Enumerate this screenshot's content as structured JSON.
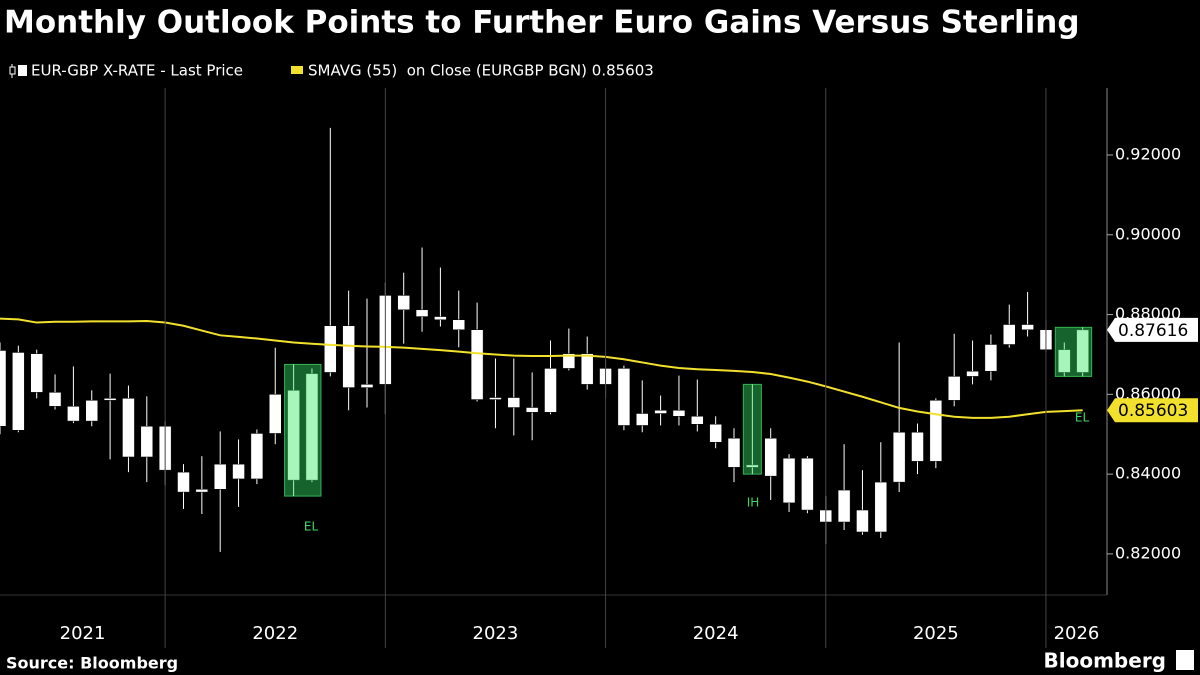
{
  "chart_data": {
    "type": "candlestick",
    "title": "Monthly Outlook Points to Further Euro Gains Versus Sterling",
    "source": "Source: Bloomberg",
    "brand": "Bloomberg",
    "categories": [
      null,
      null,
      null,
      null,
      null,
      null,
      null,
      null,
      null,
      null,
      null,
      null,
      null,
      null,
      null,
      null,
      null,
      null,
      null,
      null,
      null,
      null,
      null,
      null,
      null,
      null,
      null,
      null,
      null,
      null,
      null,
      null,
      null,
      null,
      null,
      null,
      null,
      null,
      null,
      null,
      null,
      null,
      null,
      null,
      null,
      null,
      null,
      null,
      null,
      null,
      null,
      null,
      null,
      null,
      null,
      null,
      null,
      null,
      null,
      null
    ],
    "year_labels": [
      "2021",
      "2022",
      "2023",
      "2024",
      "2025",
      "2026"
    ],
    "annotations": [
      "EL",
      "IH",
      "EL"
    ],
    "series": [
      {
        "name": "EUR-GBP X-RATE - Last Price",
        "color": "#ffffff",
        "open": [
          0.871,
          0.851,
          0.8702,
          0.8605,
          0.857,
          0.8533,
          0.8585,
          0.859,
          0.8443,
          0.852,
          0.8405,
          0.8355,
          0.8362,
          0.8425,
          0.8388,
          0.8502,
          0.861,
          0.8385,
          0.8655,
          0.8772,
          0.8617,
          0.8625,
          0.8848,
          0.8812,
          0.8795,
          0.8787,
          0.8762,
          0.8587,
          0.8592,
          0.8567,
          0.8555,
          0.8665,
          0.8702,
          0.8625,
          0.8665,
          0.8522,
          0.8552,
          0.856,
          0.8545,
          0.8525,
          0.849,
          0.8417,
          0.849,
          0.844,
          0.844,
          0.831,
          0.828,
          0.831,
          0.8255,
          0.838,
          0.8505,
          0.8432,
          0.8585,
          0.8645,
          0.8658,
          0.8725,
          0.8775,
          0.8762,
          0.8712,
          0.8655
        ],
        "high": [
          0.873,
          0.8722,
          0.8712,
          0.865,
          0.867,
          0.861,
          0.8652,
          0.8622,
          0.8595,
          0.8532,
          0.8425,
          0.8445,
          0.8507,
          0.8487,
          0.8512,
          0.8717,
          0.8675,
          0.8665,
          0.9268,
          0.886,
          0.884,
          0.888,
          0.8905,
          0.8968,
          0.8918,
          0.886,
          0.883,
          0.869,
          0.869,
          0.8655,
          0.8735,
          0.8765,
          0.8745,
          0.8685,
          0.8672,
          0.8635,
          0.8597,
          0.8647,
          0.8637,
          0.8545,
          0.8515,
          0.8625,
          0.8515,
          0.845,
          0.8445,
          0.8345,
          0.8475,
          0.841,
          0.848,
          0.873,
          0.8527,
          0.859,
          0.8752,
          0.8735,
          0.875,
          0.8825,
          0.8857,
          0.8787,
          0.873,
          0.8768
        ],
        "low": [
          0.85,
          0.8505,
          0.859,
          0.8562,
          0.8528,
          0.852,
          0.8437,
          0.8405,
          0.838,
          0.8372,
          0.8313,
          0.83,
          0.8205,
          0.8318,
          0.8375,
          0.8475,
          0.8345,
          0.838,
          0.8645,
          0.856,
          0.8567,
          0.855,
          0.8727,
          0.8757,
          0.877,
          0.8718,
          0.8582,
          0.8515,
          0.8497,
          0.8485,
          0.855,
          0.866,
          0.8612,
          0.859,
          0.851,
          0.8505,
          0.8522,
          0.8522,
          0.8507,
          0.8465,
          0.838,
          0.84,
          0.8335,
          0.8305,
          0.8302,
          0.8225,
          0.826,
          0.8248,
          0.824,
          0.8355,
          0.84,
          0.8415,
          0.857,
          0.8625,
          0.8635,
          0.8717,
          0.8745,
          0.8705,
          0.8645,
          0.8645
        ],
        "close": [
          0.852,
          0.8705,
          0.8605,
          0.857,
          0.8533,
          0.8585,
          0.859,
          0.8443,
          0.852,
          0.841,
          0.8355,
          0.8362,
          0.8425,
          0.8388,
          0.8502,
          0.86,
          0.8385,
          0.8652,
          0.8772,
          0.8617,
          0.8625,
          0.8848,
          0.8812,
          0.8795,
          0.8787,
          0.8762,
          0.8587,
          0.8592,
          0.8567,
          0.8555,
          0.8665,
          0.8702,
          0.8625,
          0.8665,
          0.8522,
          0.8552,
          0.856,
          0.8545,
          0.8525,
          0.848,
          0.8417,
          0.8423,
          0.8395,
          0.8328,
          0.831,
          0.828,
          0.836,
          0.8255,
          0.838,
          0.8505,
          0.8432,
          0.8585,
          0.8645,
          0.8658,
          0.8725,
          0.8775,
          0.8762,
          0.8712,
          0.8655,
          0.87616
        ],
        "last_label": "0.87616"
      },
      {
        "name": "SMAVG (55)  on Close (EURGBP BGN) 0.85603",
        "color": "#f2e12c",
        "values": [
          0.879,
          0.8788,
          0.878,
          0.8782,
          0.8782,
          0.8783,
          0.8783,
          0.8783,
          0.8784,
          0.878,
          0.8772,
          0.876,
          0.8748,
          0.8744,
          0.874,
          0.8735,
          0.873,
          0.8727,
          0.8724,
          0.8722,
          0.872,
          0.8719,
          0.8717,
          0.8714,
          0.8711,
          0.8707,
          0.8703,
          0.87,
          0.8697,
          0.8696,
          0.8696,
          0.8697,
          0.8697,
          0.8694,
          0.8688,
          0.868,
          0.8672,
          0.8666,
          0.8663,
          0.8661,
          0.8659,
          0.8656,
          0.8651,
          0.8642,
          0.8632,
          0.862,
          0.8607,
          0.8594,
          0.858,
          0.8566,
          0.8557,
          0.855,
          0.8544,
          0.8541,
          0.8541,
          0.8544,
          0.855,
          0.8556,
          0.8558,
          0.85603
        ],
        "last_label": "0.85603"
      }
    ],
    "ylim": [
      0.8097,
      0.9368
    ],
    "yticks": [
      {
        "value": 0.82,
        "label": "0.82000"
      },
      {
        "value": 0.84,
        "label": "0.84000"
      },
      {
        "value": 0.86,
        "label": "0.86000"
      },
      {
        "value": 0.88,
        "label": "0.88000"
      },
      {
        "value": 0.9,
        "label": "0.90000"
      },
      {
        "value": 0.92,
        "label": "0.92000"
      }
    ]
  }
}
